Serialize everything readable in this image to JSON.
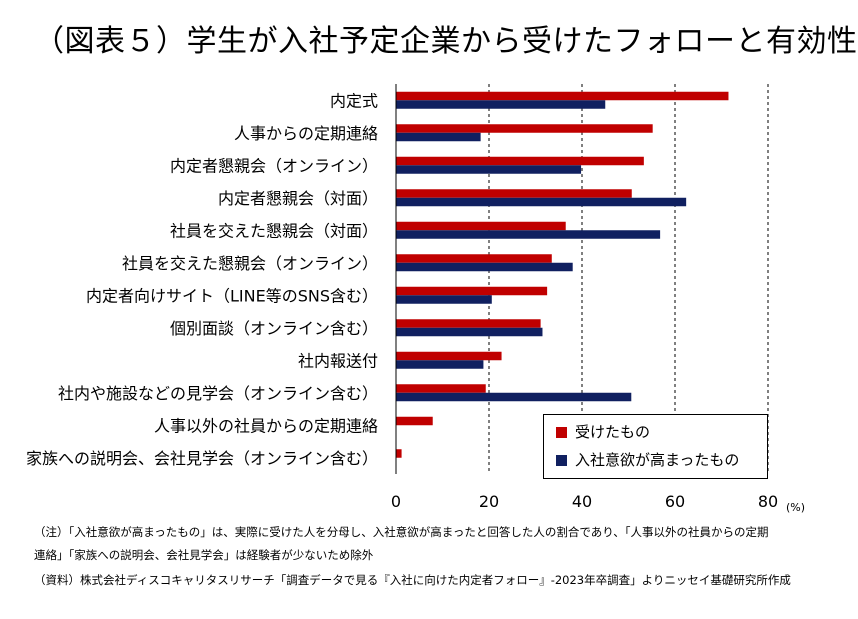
{
  "title": "（図表５）学生が入社予定企業から受けたフォローと有効性",
  "chart_data": {
    "type": "bar",
    "orientation": "horizontal",
    "categories": [
      "内定式",
      "人事からの定期連絡",
      "内定者懇親会（オンライン）",
      "内定者懇親会（対面）",
      "社員を交えた懇親会（対面）",
      "社員を交えた懇親会（オンライン）",
      "内定者向けサイト（LINE等のSNS含む）",
      "個別面談（オンライン含む）",
      "社内報送付",
      "社内や施設などの見学会（オンライン含む）",
      "人事以外の社員からの定期連絡",
      "家族への説明会、会社見学会（オンライン含む）"
    ],
    "series": [
      {
        "name": "受けたもの",
        "color": "#c00000",
        "values": [
          71.5,
          55.2,
          53.3,
          50.7,
          36.5,
          33.5,
          32.5,
          31.1,
          22.7,
          19.3,
          7.9,
          1.2
        ]
      },
      {
        "name": "入社意欲が高まったもの",
        "color": "#102060",
        "values": [
          45.0,
          18.2,
          39.8,
          62.4,
          56.8,
          38.0,
          20.6,
          31.5,
          18.8,
          50.6,
          null,
          null
        ]
      }
    ],
    "xlim": [
      0,
      80
    ],
    "xticks": [
      0,
      20,
      40,
      60,
      80
    ],
    "xunit": "(%)",
    "grid": "dashed vertical at 20, 40, 60",
    "legend_position": "bottom-right"
  },
  "notes": [
    "（注）「入社意欲が高まったもの」は、実際に受けた人を分母し、入社意欲が高まったと回答した人の割合であり、「人事以外の社員からの定期",
    "連絡」「家族への説明会、会社見学会」は経験者が少ないため除外",
    "（資料）株式会社ディスコキャリタスリサーチ「調査データで見る『入社に向けた内定者フォロー』-2023年卒調査」よりニッセイ基礎研究所作成"
  ]
}
